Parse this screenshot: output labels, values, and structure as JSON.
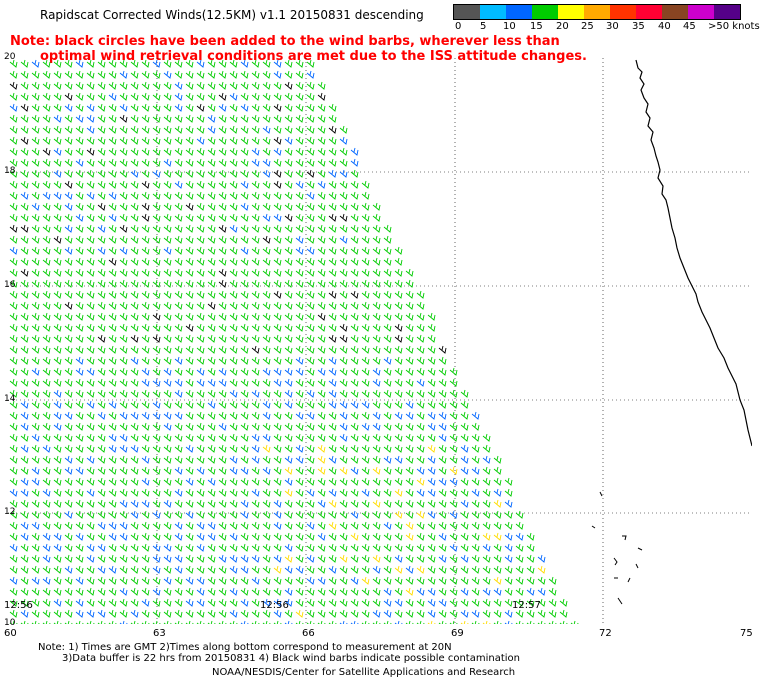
{
  "title": "Rapidscat Corrected Winds(12.5KM) v1.1 20150831 descending",
  "note_line1": "Note: black circles have been added to the wind barbs, wherever less than",
  "note_line2": "optimal wind retrieval conditions are met due to the ISS attitude changes.",
  "color_scale": {
    "colors": [
      "#555555",
      "#00bbff",
      "#0066ff",
      "#00cc00",
      "#ffff00",
      "#ffaa00",
      "#ff3300",
      "#ff0033",
      "#884422",
      "#cc00cc",
      "#550088"
    ],
    "labels": [
      "0",
      "5",
      "10",
      "15",
      "20",
      "25",
      "30",
      "35",
      "40",
      "45",
      ">50 knots"
    ]
  },
  "lon_labels": [
    "60",
    "63",
    "66",
    "69",
    "72",
    "75"
  ],
  "lat_labels": [
    "20",
    "18",
    "16",
    "14",
    "12",
    "10"
  ],
  "time_labels": [
    "12:56",
    "12:56",
    "12:57"
  ],
  "footer": {
    "line1": "Note: 1) Times are GMT 2)Times along bottom correspond to measurement at 20N",
    "line2": "3)Data buffer is 22 hrs from 20150831 4) Black wind barbs indicate possible contamination",
    "line3": "NOAA/NESDIS/Center for Satellite Applications and Research"
  }
}
